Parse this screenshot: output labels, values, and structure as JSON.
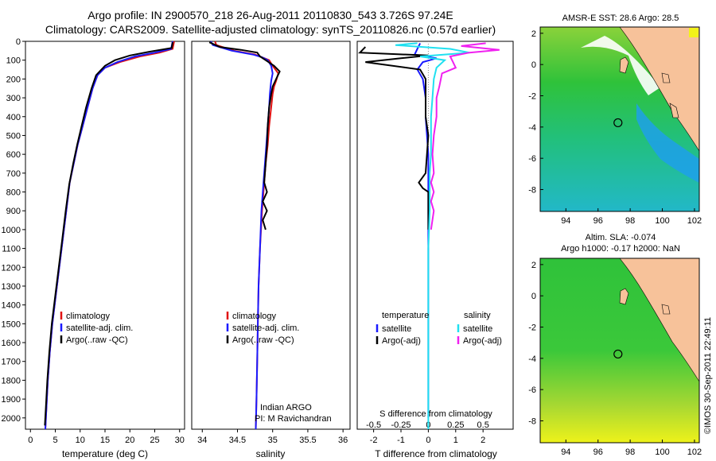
{
  "header": {
    "line1": "Argo profile: IN 2900570_218 26-Aug-2011 20110830_543 3.726S 97.24E",
    "line2": "Climatology: CARS2009. Satellite-adjusted climatology: synTS_20110826.nc (0.57d earlier)"
  },
  "colors": {
    "climatology": "#e01010",
    "satellite": "#1a1aff",
    "argo": "#000000",
    "salinity_sat": "#20e0f0",
    "salinity_argo": "#f020f0",
    "ocean": "#2fc23a",
    "land": "#f7c29a",
    "warm": "#f2f21a",
    "cool": "#25c8e8"
  },
  "chart_data": [
    {
      "type": "line",
      "name": "temperature-profile",
      "xlabel": "temperature (deg C)",
      "xlim": [
        -1,
        31
      ],
      "xticks": [
        0,
        5,
        10,
        15,
        20,
        25,
        30
      ],
      "ylim": [
        2060,
        0
      ],
      "yticks": [
        0,
        100,
        200,
        300,
        400,
        500,
        600,
        700,
        800,
        900,
        1000,
        1100,
        1200,
        1300,
        1400,
        1500,
        1600,
        1700,
        1800,
        1900,
        2000
      ],
      "legend": {
        "placement": "lower-center",
        "entries": [
          "climatology",
          "satellite-adj. clim.",
          "Argo(..raw -QC)"
        ]
      },
      "series": [
        {
          "name": "climatology",
          "color": "#e01010",
          "points": [
            [
              28.9,
              0
            ],
            [
              28.6,
              40
            ],
            [
              26,
              60
            ],
            [
              22,
              80
            ],
            [
              18,
              110
            ],
            [
              15,
              140
            ],
            [
              13.5,
              180
            ],
            [
              12.5,
              250
            ],
            [
              11.5,
              350
            ],
            [
              10.5,
              450
            ],
            [
              9.5,
              550
            ],
            [
              8.7,
              650
            ],
            [
              7.9,
              750
            ],
            [
              7.2,
              900
            ],
            [
              6.5,
              1050
            ],
            [
              5.8,
              1200
            ],
            [
              5.1,
              1350
            ],
            [
              4.4,
              1500
            ],
            [
              3.9,
              1650
            ],
            [
              3.5,
              1800
            ],
            [
              3.2,
              1950
            ],
            [
              3.0,
              2060
            ]
          ]
        },
        {
          "name": "satellite-adj. clim.",
          "color": "#1a1aff",
          "points": [
            [
              28.6,
              0
            ],
            [
              28.3,
              40
            ],
            [
              25,
              60
            ],
            [
              21,
              80
            ],
            [
              17.5,
              110
            ],
            [
              15,
              140
            ],
            [
              13.5,
              180
            ],
            [
              12.5,
              250
            ],
            [
              11.5,
              350
            ],
            [
              10.5,
              450
            ],
            [
              9.5,
              550
            ],
            [
              8.7,
              650
            ],
            [
              7.9,
              750
            ],
            [
              7.2,
              900
            ],
            [
              6.5,
              1050
            ],
            [
              5.8,
              1200
            ],
            [
              5.1,
              1350
            ],
            [
              4.4,
              1500
            ],
            [
              3.9,
              1650
            ],
            [
              3.5,
              1800
            ],
            [
              3.2,
              1950
            ],
            [
              3.0,
              2060
            ]
          ]
        },
        {
          "name": "Argo(..raw -QC)",
          "color": "#000000",
          "points": [
            [
              28.6,
              5
            ],
            [
              28.4,
              35
            ],
            [
              24,
              55
            ],
            [
              20,
              75
            ],
            [
              17,
              100
            ],
            [
              15,
              130
            ],
            [
              13.2,
              180
            ],
            [
              12.3,
              250
            ],
            [
              11.2,
              350
            ],
            [
              10.3,
              450
            ],
            [
              9.4,
              550
            ],
            [
              8.6,
              650
            ],
            [
              7.8,
              760
            ],
            [
              7.1,
              900
            ],
            [
              6.4,
              1050
            ],
            [
              5.7,
              1200
            ],
            [
              5.0,
              1350
            ],
            [
              4.3,
              1500
            ],
            [
              3.8,
              1650
            ],
            [
              3.4,
              1800
            ],
            [
              3.1,
              1950
            ],
            [
              2.9,
              2040
            ]
          ]
        }
      ]
    },
    {
      "type": "line",
      "name": "salinity-profile",
      "xlabel": "salinity",
      "xlim": [
        33.85,
        36.1
      ],
      "xticks": [
        34,
        34.5,
        35,
        35.5,
        36
      ],
      "ylim": [
        2060,
        0
      ],
      "legend": {
        "placement": "lower-center",
        "entries": [
          "climatology",
          "satellite-adj. clim.",
          "Argo(..raw -QC)"
        ]
      },
      "annotation": [
        "Indian ARGO",
        "PI: M Ravichandran"
      ],
      "series": [
        {
          "name": "climatology",
          "color": "#e01010",
          "points": [
            [
              34.18,
              0
            ],
            [
              34.2,
              20
            ],
            [
              34.45,
              50
            ],
            [
              34.75,
              70
            ],
            [
              34.85,
              85
            ],
            [
              34.95,
              100
            ],
            [
              35.0,
              130
            ],
            [
              35.08,
              170
            ],
            [
              35.05,
              210
            ],
            [
              35.02,
              240
            ],
            [
              35.0,
              280
            ],
            [
              34.98,
              350
            ],
            [
              34.95,
              450
            ],
            [
              34.93,
              550
            ],
            [
              34.9,
              650
            ],
            [
              34.88,
              750
            ],
            [
              34.85,
              900
            ],
            [
              34.82,
              1100
            ],
            [
              34.8,
              1300
            ],
            [
              34.79,
              1500
            ],
            [
              34.78,
              1700
            ],
            [
              34.77,
              1900
            ],
            [
              34.76,
              2060
            ]
          ]
        },
        {
          "name": "satellite-adj. clim.",
          "color": "#1a1aff",
          "points": [
            [
              34.12,
              0
            ],
            [
              34.15,
              20
            ],
            [
              34.42,
              50
            ],
            [
              34.72,
              70
            ],
            [
              34.85,
              85
            ],
            [
              34.93,
              100
            ],
            [
              34.98,
              130
            ],
            [
              35.0,
              170
            ],
            [
              34.98,
              210
            ],
            [
              34.97,
              240
            ],
            [
              34.96,
              280
            ],
            [
              34.95,
              350
            ],
            [
              34.93,
              450
            ],
            [
              34.91,
              550
            ],
            [
              34.89,
              650
            ],
            [
              34.87,
              750
            ],
            [
              34.84,
              900
            ],
            [
              34.82,
              1100
            ],
            [
              34.8,
              1300
            ],
            [
              34.79,
              1500
            ],
            [
              34.78,
              1700
            ],
            [
              34.77,
              1900
            ],
            [
              34.76,
              2060
            ]
          ]
        },
        {
          "name": "Argo(..raw -QC)",
          "color": "#000000",
          "points": [
            [
              34.1,
              5
            ],
            [
              34.25,
              30
            ],
            [
              34.55,
              45
            ],
            [
              34.78,
              60
            ],
            [
              34.82,
              80
            ],
            [
              34.9,
              100
            ],
            [
              35.02,
              130
            ],
            [
              35.1,
              160
            ],
            [
              35.05,
              200
            ],
            [
              35.0,
              240
            ],
            [
              34.98,
              280
            ],
            [
              34.95,
              350
            ],
            [
              34.93,
              450
            ],
            [
              34.92,
              550
            ],
            [
              34.9,
              650
            ],
            [
              34.88,
              750
            ],
            [
              34.92,
              800
            ],
            [
              34.86,
              850
            ],
            [
              34.92,
              900
            ],
            [
              34.86,
              950
            ],
            [
              34.9,
              1000
            ]
          ]
        }
      ]
    },
    {
      "type": "line",
      "name": "difference-profile",
      "xlabel": "T difference from climatology",
      "xlim": [
        -2.6,
        3.1
      ],
      "xticks": [
        -2,
        -1,
        0,
        1,
        2
      ],
      "top_axis_label": "S difference from climatology",
      "top_axis_ticks": [
        "-0.5",
        "-0.25",
        "0",
        "0.25",
        "0.5"
      ],
      "top_axis_positions": [
        -2,
        -1,
        0,
        1,
        2
      ],
      "ylim": [
        2060,
        0
      ],
      "legend": {
        "placement": "lower-center",
        "temperature_title": "temperature",
        "salinity_title": "salinity",
        "temperature_entries": [
          "satellite",
          "Argo(-adj)"
        ],
        "salinity_entries": [
          "satellite",
          "Argo(-adj)"
        ]
      },
      "series": [
        {
          "name": "temperature satellite",
          "color": "#1a1aff",
          "points": [
            [
              -0.3,
              10
            ],
            [
              -0.4,
              40
            ],
            [
              -0.5,
              70
            ],
            [
              0.3,
              90
            ],
            [
              -0.2,
              110
            ],
            [
              -0.4,
              150
            ],
            [
              -0.2,
              200
            ],
            [
              -0.1,
              300
            ],
            [
              -0.1,
              400
            ],
            [
              -0.05,
              500
            ],
            [
              0,
              600
            ],
            [
              0,
              800
            ],
            [
              0,
              1000
            ],
            [
              0,
              1500
            ],
            [
              0,
              2000
            ]
          ]
        },
        {
          "name": "temperature Argo(-adj)",
          "color": "#000000",
          "points": [
            [
              -2.3,
              30
            ],
            [
              -2.5,
              60
            ],
            [
              0,
              75
            ],
            [
              -1,
              90
            ],
            [
              -2.3,
              110
            ],
            [
              -0.3,
              150
            ],
            [
              -0.1,
              200
            ],
            [
              -0.1,
              300
            ],
            [
              -0.1,
              400
            ],
            [
              0,
              500
            ],
            [
              -0.05,
              600
            ],
            [
              -0.1,
              700
            ],
            [
              -0.35,
              750
            ],
            [
              -0.2,
              780
            ],
            [
              0,
              800
            ],
            [
              0,
              900
            ],
            [
              0,
              1000
            ]
          ]
        },
        {
          "name": "salinity satellite",
          "color": "#20e0f0",
          "points": [
            [
              -0.4,
              10
            ],
            [
              -1.2,
              20
            ],
            [
              0.8,
              40
            ],
            [
              1.5,
              60
            ],
            [
              -0.3,
              80
            ],
            [
              0.6,
              100
            ],
            [
              0.3,
              140
            ],
            [
              0.2,
              200
            ],
            [
              0.15,
              300
            ],
            [
              0.1,
              400
            ],
            [
              0.1,
              500
            ],
            [
              0.1,
              600
            ],
            [
              0.05,
              700
            ],
            [
              0.05,
              900
            ],
            [
              0,
              1100
            ],
            [
              0,
              1300
            ],
            [
              0,
              1500
            ],
            [
              0,
              1700
            ],
            [
              0,
              1900
            ],
            [
              0,
              2060
            ]
          ]
        },
        {
          "name": "salinity Argo(-adj)",
          "color": "#f020f0",
          "points": [
            [
              2.1,
              10
            ],
            [
              1.2,
              25
            ],
            [
              2.6,
              45
            ],
            [
              1.5,
              60
            ],
            [
              0.8,
              80
            ],
            [
              0.9,
              110
            ],
            [
              1.0,
              140
            ],
            [
              0.5,
              170
            ],
            [
              0.4,
              240
            ],
            [
              0.3,
              300
            ],
            [
              0.3,
              400
            ],
            [
              0.2,
              500
            ],
            [
              0.15,
              600
            ],
            [
              0.2,
              700
            ],
            [
              0.1,
              750
            ],
            [
              0.2,
              800
            ],
            [
              0.1,
              850
            ],
            [
              0.2,
              900
            ],
            [
              0.1,
              1000
            ]
          ]
        }
      ]
    },
    {
      "type": "heatmap",
      "name": "sst-map",
      "title": "AMSR-E SST: 28.6  Argo: 28.5",
      "xlim": [
        92.4,
        102.3
      ],
      "ylim": [
        -9.4,
        2.4
      ],
      "xticks": [
        94,
        96,
        98,
        100,
        102
      ],
      "yticks": [
        2,
        0,
        -2,
        -4,
        -6,
        -8
      ],
      "marker": {
        "lon": 97.24,
        "lat": -3.726
      }
    },
    {
      "type": "heatmap",
      "name": "sla-map",
      "title_line1": "Altim. SLA: -0.074",
      "title_line2": "Argo h1000: -0.17  h2000: NaN",
      "xlim": [
        92.4,
        102.3
      ],
      "ylim": [
        -9.4,
        2.4
      ],
      "xticks": [
        94,
        96,
        98,
        100,
        102
      ],
      "yticks": [
        2,
        0,
        -2,
        -4,
        -6,
        -8
      ],
      "marker": {
        "lon": 97.24,
        "lat": -3.726
      }
    }
  ],
  "credit": "©IMOS 30-Sep-2011 22:49:11"
}
